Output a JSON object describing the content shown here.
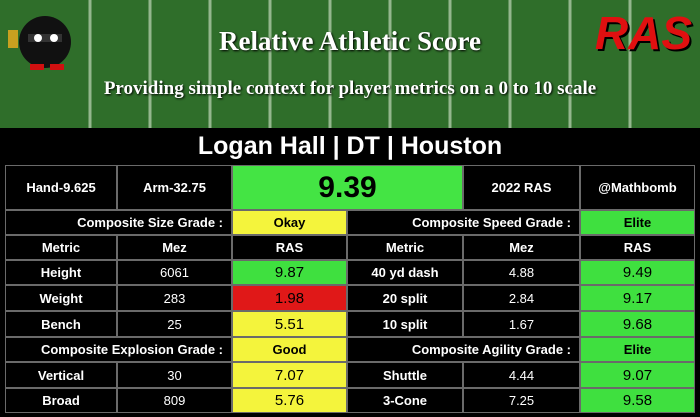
{
  "header": {
    "title": "Relative Athletic Score",
    "subtitle": "Providing simple context for player metrics on a 0 to 10 scale",
    "logo": "RAS"
  },
  "player": "Logan Hall | DT | Houston",
  "summary": {
    "hand": "Hand-9.625",
    "arm": "Arm-32.75",
    "score": 9.39,
    "score_color": "#44e444",
    "year": "2022 RAS",
    "handle": "@Mathbomb"
  },
  "panels": [
    {
      "columns": [
        "Metric",
        "Mez",
        "RAS"
      ],
      "groups": [
        {
          "grade_label": "Composite Size Grade :",
          "grade": "Okay",
          "grade_color": "#f4f43c",
          "rows": [
            {
              "metric": "Height",
              "mez": 6061,
              "ras": 9.87,
              "color": "#3fe03f"
            },
            {
              "metric": "Weight",
              "mez": 283,
              "ras": 1.98,
              "color": "#e01818"
            },
            {
              "metric": "Bench",
              "mez": 25,
              "ras": 5.51,
              "color": "#f4f43c"
            }
          ]
        },
        {
          "grade_label": "Composite Explosion Grade :",
          "grade": "Good",
          "grade_color": "#f4f43c",
          "rows": [
            {
              "metric": "Vertical",
              "mez": 30,
              "ras": 7.07,
              "color": "#f4f43c"
            },
            {
              "metric": "Broad",
              "mez": 809,
              "ras": 5.76,
              "color": "#f4f43c"
            }
          ]
        }
      ]
    },
    {
      "columns": [
        "Metric",
        "Mez",
        "RAS"
      ],
      "groups": [
        {
          "grade_label": "Composite Speed Grade :",
          "grade": "Elite",
          "grade_color": "#3fe03f",
          "rows": [
            {
              "metric": "40 yd dash",
              "mez": 4.88,
              "ras": 9.49,
              "color": "#3fe03f"
            },
            {
              "metric": "20 split",
              "mez": 2.84,
              "ras": 9.17,
              "color": "#3fe03f"
            },
            {
              "metric": "10 split",
              "mez": 1.67,
              "ras": 9.68,
              "color": "#3fe03f"
            }
          ]
        },
        {
          "grade_label": "Composite Agility Grade :",
          "grade": "Elite",
          "grade_color": "#3fe03f",
          "rows": [
            {
              "metric": "Shuttle",
              "mez": 4.44,
              "ras": 9.07,
              "color": "#3fe03f"
            },
            {
              "metric": "3-Cone",
              "mez": 7.25,
              "ras": 9.58,
              "color": "#3fe03f"
            }
          ]
        }
      ]
    }
  ]
}
